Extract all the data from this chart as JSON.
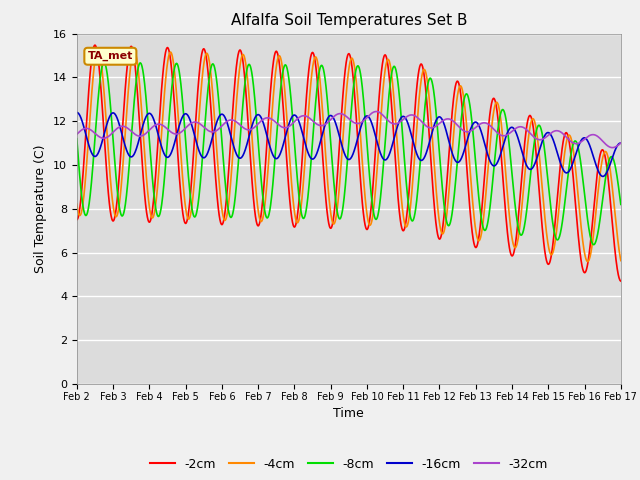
{
  "title": "Alfalfa Soil Temperatures Set B",
  "xlabel": "Time",
  "ylabel": "Soil Temperature (C)",
  "xlim": [
    0,
    360
  ],
  "ylim": [
    0,
    16
  ],
  "yticks": [
    0,
    2,
    4,
    6,
    8,
    10,
    12,
    14,
    16
  ],
  "xtick_labels": [
    "Feb 2",
    "Feb 3",
    "Feb 4",
    "Feb 5",
    "Feb 6",
    "Feb 7",
    "Feb 8",
    "Feb 9",
    "Feb 10",
    "Feb 11",
    "Feb 12",
    "Feb 13",
    "Feb 14",
    "Feb 15",
    "Feb 16",
    "Feb 17"
  ],
  "xtick_positions": [
    0,
    24,
    48,
    72,
    96,
    120,
    144,
    168,
    192,
    216,
    240,
    264,
    288,
    312,
    336,
    360
  ],
  "colors": {
    "-2cm": "#ff0000",
    "-4cm": "#ff8800",
    "-8cm": "#00dd00",
    "-16cm": "#0000cc",
    "-32cm": "#aa44cc"
  },
  "annotation_text": "TA_met",
  "annotation_bg": "#ffffcc",
  "annotation_border": "#cc8800",
  "fig_bg": "#f0f0f0",
  "plot_bg": "#dcdcdc",
  "grid_color": "#ffffff",
  "linewidth": 1.2
}
